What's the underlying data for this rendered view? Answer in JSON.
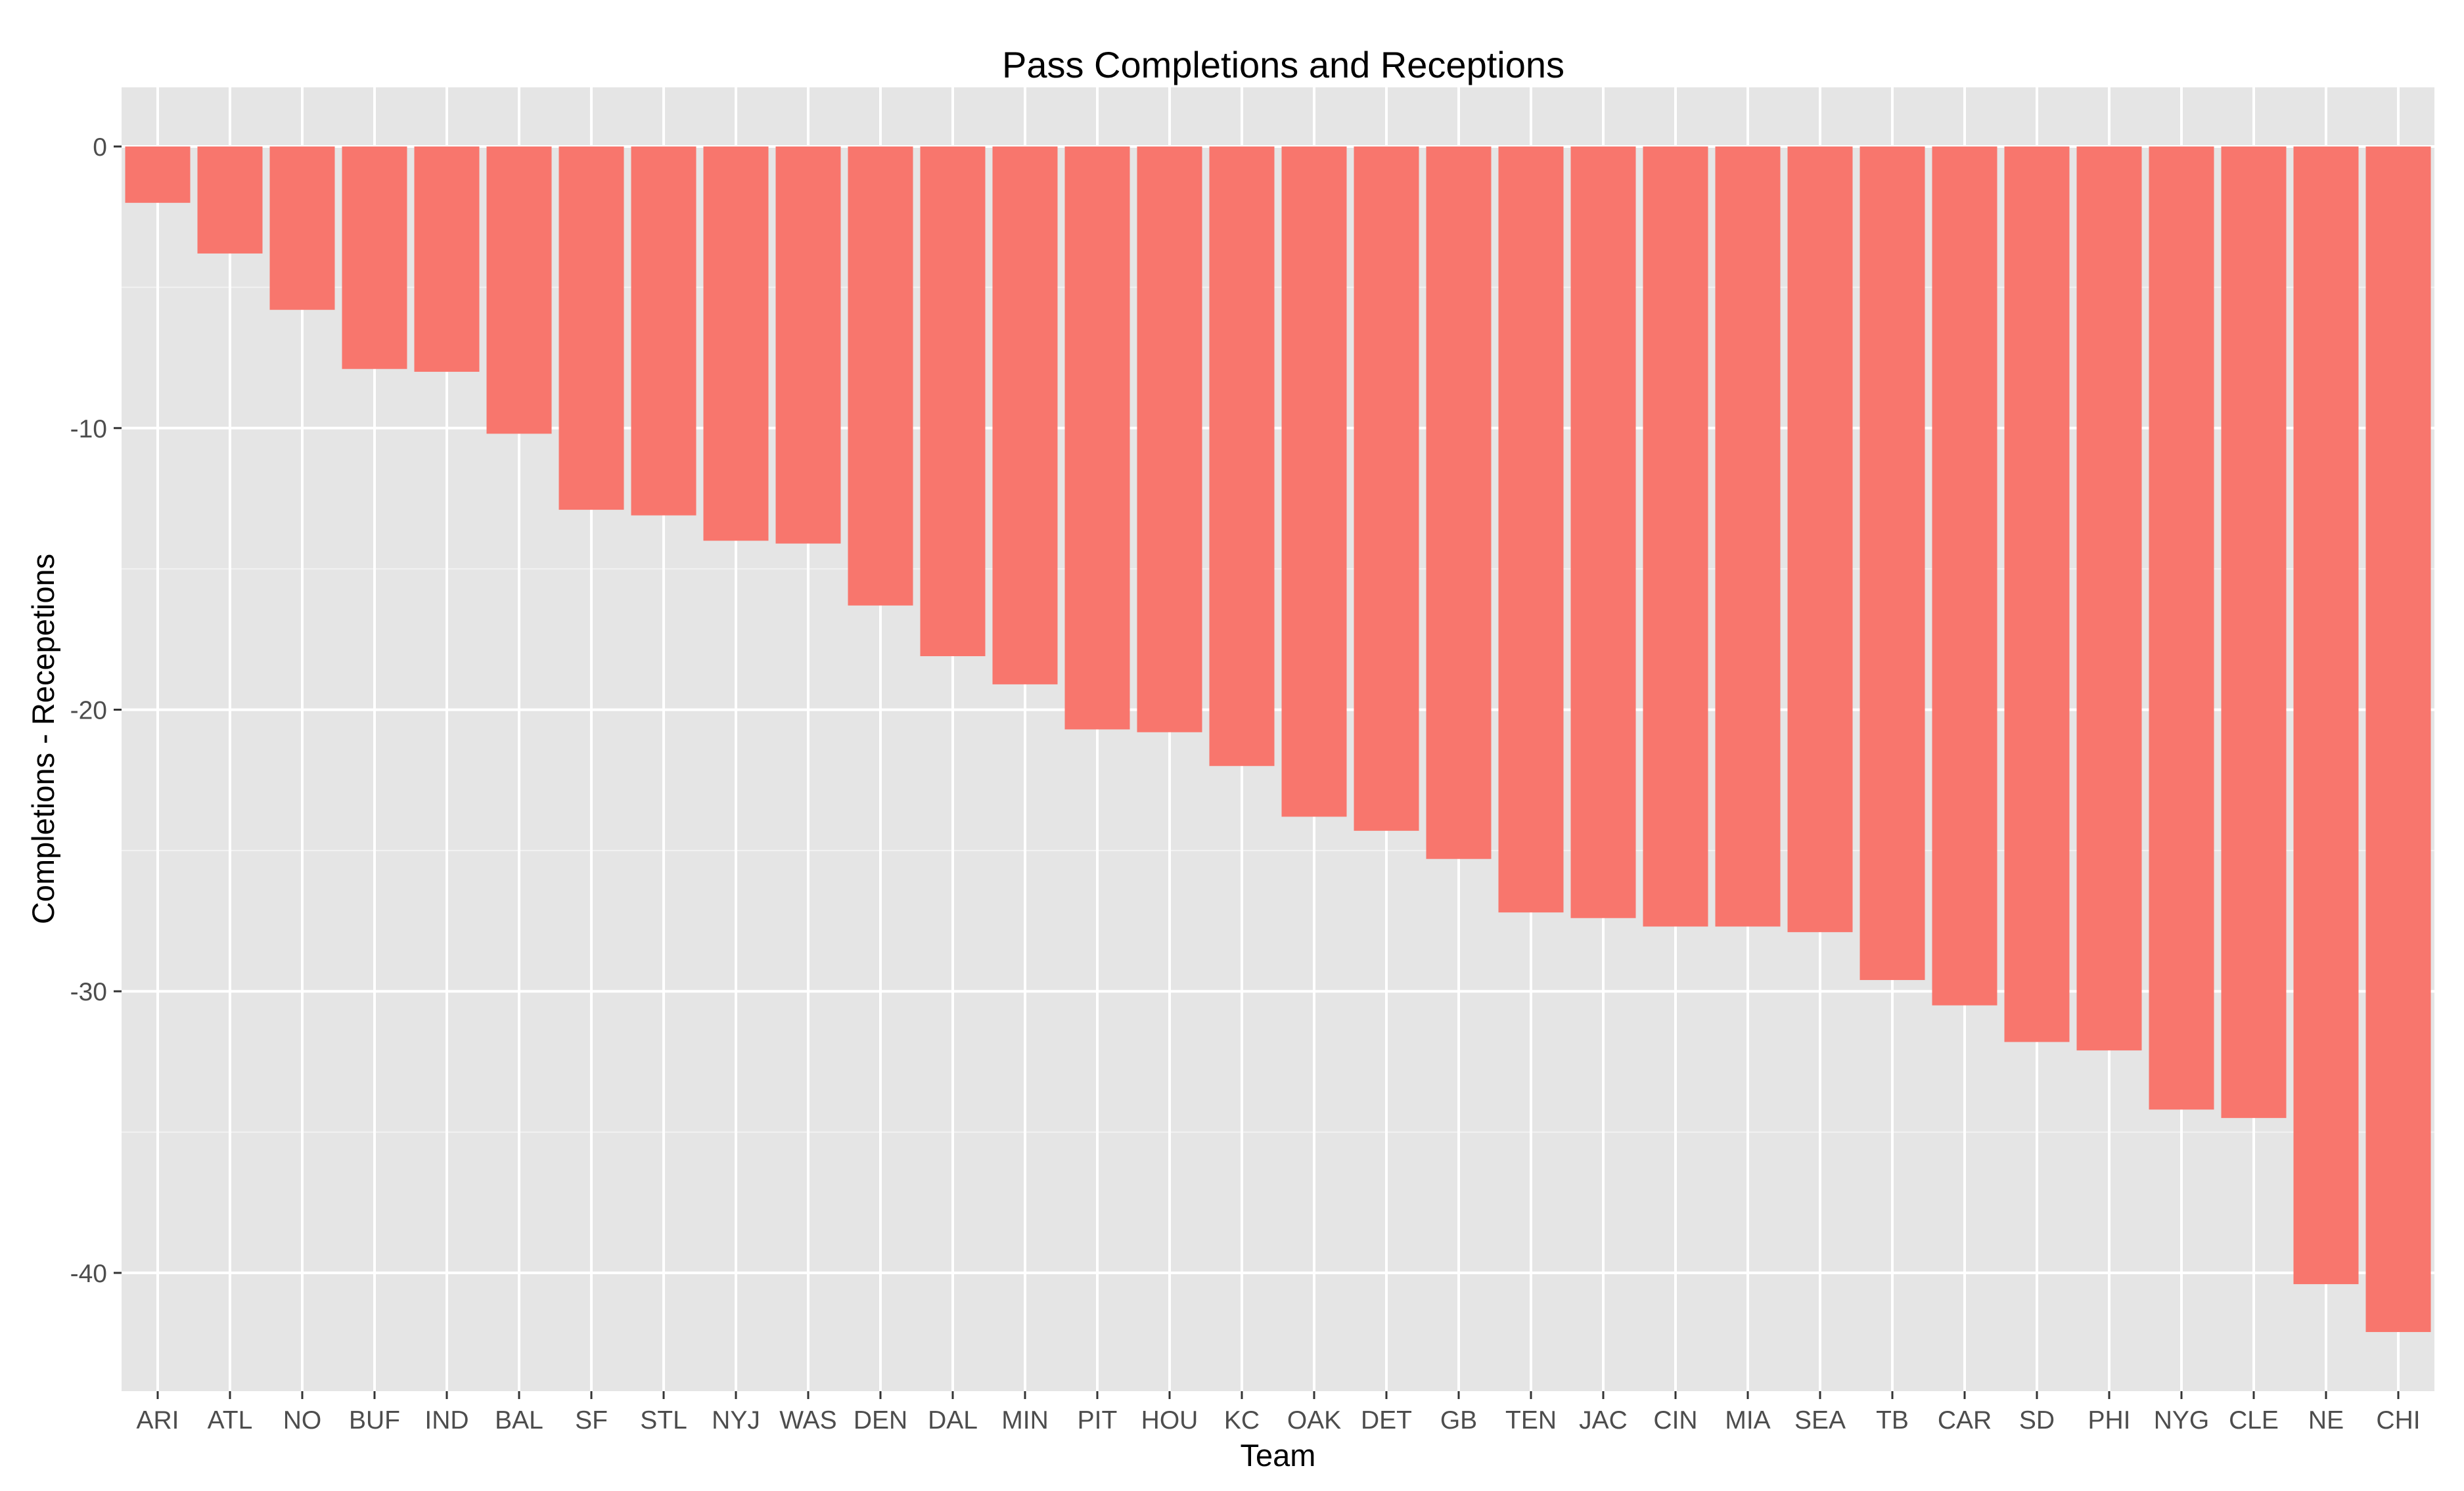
{
  "chart_data": {
    "type": "bar",
    "title": "Pass Completions and Receptions",
    "xlabel": "Team",
    "ylabel": "Completions - Recepetions",
    "categories": [
      "ARI",
      "ATL",
      "NO",
      "BUF",
      "IND",
      "BAL",
      "SF",
      "STL",
      "NYJ",
      "WAS",
      "DEN",
      "DAL",
      "MIN",
      "PIT",
      "HOU",
      "KC",
      "OAK",
      "DET",
      "GB",
      "TEN",
      "JAC",
      "CIN",
      "MIA",
      "SEA",
      "TB",
      "CAR",
      "SD",
      "PHI",
      "NYG",
      "CLE",
      "NE",
      "CHI"
    ],
    "values": [
      -2,
      -3.8,
      -5.8,
      -7.9,
      -8,
      -10.2,
      -12.9,
      -13.1,
      -14,
      -14.1,
      -16.3,
      -18.1,
      -19.1,
      -20.7,
      -20.8,
      -22,
      -23.8,
      -24.3,
      -25.3,
      -27.2,
      -27.4,
      -27.7,
      -27.7,
      -27.9,
      -29.6,
      -30.5,
      -31.8,
      -32.1,
      -34.2,
      -34.5,
      -40.4,
      -42.1
    ],
    "yticks": [
      0,
      -10,
      -20,
      -30,
      -40
    ],
    "ylim": [
      -44.2,
      2.1
    ],
    "grid": true,
    "bar_color": "#F8766D",
    "panel_color": "#E5E5E5",
    "grid_color": "#FFFFFF"
  }
}
